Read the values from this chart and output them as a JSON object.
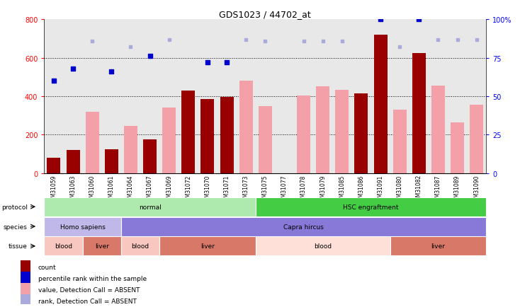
{
  "title": "GDS1023 / 44702_at",
  "samples": [
    "GSM31059",
    "GSM31063",
    "GSM31060",
    "GSM31061",
    "GSM31064",
    "GSM31067",
    "GSM31069",
    "GSM31072",
    "GSM31070",
    "GSM31071",
    "GSM31073",
    "GSM31075",
    "GSM31077",
    "GSM31078",
    "GSM31079",
    "GSM31085",
    "GSM31086",
    "GSM31091",
    "GSM31080",
    "GSM31082",
    "GSM31087",
    "GSM31089",
    "GSM31090"
  ],
  "count_values": [
    80,
    120,
    null,
    125,
    null,
    175,
    null,
    430,
    385,
    395,
    null,
    null,
    null,
    null,
    null,
    null,
    415,
    720,
    null,
    625,
    null,
    null,
    null
  ],
  "value_absent": [
    null,
    null,
    320,
    null,
    245,
    null,
    340,
    null,
    null,
    null,
    480,
    350,
    null,
    405,
    450,
    435,
    null,
    null,
    330,
    null,
    455,
    265,
    355
  ],
  "percentile_present": [
    60,
    68,
    null,
    66,
    null,
    76,
    null,
    null,
    72,
    72,
    null,
    null,
    null,
    null,
    null,
    null,
    null,
    100,
    null,
    100,
    null,
    null,
    null
  ],
  "rank_absent": [
    null,
    null,
    86,
    null,
    82,
    null,
    87,
    null,
    null,
    null,
    87,
    86,
    null,
    86,
    86,
    86,
    null,
    null,
    82,
    null,
    87,
    87,
    87
  ],
  "protocol_groups": [
    {
      "label": "normal",
      "start": 0,
      "end": 11,
      "color": "#AEEAAE"
    },
    {
      "label": "HSC engraftment",
      "start": 11,
      "end": 23,
      "color": "#44CC44"
    }
  ],
  "species_groups": [
    {
      "label": "Homo sapiens",
      "start": 0,
      "end": 4,
      "color": "#C0B8E8"
    },
    {
      "label": "Capra hircus",
      "start": 4,
      "end": 23,
      "color": "#8878D8"
    }
  ],
  "tissue_groups": [
    {
      "label": "blood",
      "start": 0,
      "end": 2,
      "color": "#F8C8C0"
    },
    {
      "label": "liver",
      "start": 2,
      "end": 4,
      "color": "#D87868"
    },
    {
      "label": "blood",
      "start": 4,
      "end": 6,
      "color": "#F8C8C0"
    },
    {
      "label": "liver",
      "start": 6,
      "end": 11,
      "color": "#D87868"
    },
    {
      "label": "blood",
      "start": 11,
      "end": 18,
      "color": "#FFE0D8"
    },
    {
      "label": "liver",
      "start": 18,
      "end": 23,
      "color": "#D87868"
    }
  ],
  "ylim": [
    0,
    800
  ],
  "yticks_left": [
    0,
    200,
    400,
    600,
    800
  ],
  "yticks_right": [
    0,
    25,
    50,
    75,
    100
  ],
  "bar_color_count": "#990000",
  "bar_color_absent": "#F4A0A8",
  "dot_color_present": "#0000CC",
  "dot_color_absent": "#AAAADD",
  "bg_color": "#E8E8E8"
}
